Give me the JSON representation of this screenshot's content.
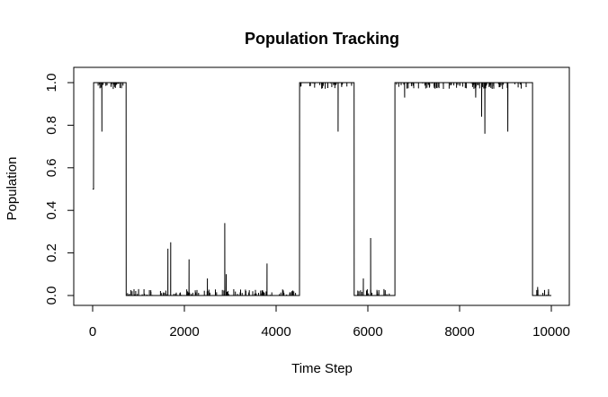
{
  "chart_data": {
    "type": "line",
    "title": "Population Tracking",
    "xlabel": "Time Step",
    "ylabel": "Population",
    "xlim": [
      0,
      10000
    ],
    "ylim": [
      0,
      1
    ],
    "x_ticks": [
      0,
      2000,
      4000,
      6000,
      8000,
      10000
    ],
    "x_tick_labels": [
      "0",
      "2000",
      "4000",
      "6000",
      "8000",
      "10000"
    ],
    "y_ticks": [
      0.0,
      0.2,
      0.4,
      0.6,
      0.8,
      1.0
    ],
    "y_tick_labels": [
      "0.0",
      "0.2",
      "0.4",
      "0.6",
      "0.8",
      "1.0"
    ],
    "grid": false,
    "legend": "none",
    "line_color": "#000000",
    "series": [
      {
        "x": [
          0,
          20,
          21,
          200,
          201,
          202,
          400,
          401,
          402,
          700,
          720,
          730,
          731,
          1000,
          1001,
          1002,
          1640,
          1641,
          1642,
          1700,
          1701,
          1702,
          2100,
          2101,
          2102,
          2500,
          2501,
          2502,
          2880,
          2881,
          2882,
          2910,
          2911,
          2912,
          3800,
          3801,
          3802,
          4480,
          4500,
          4510,
          4511,
          5350,
          5351,
          5352,
          5670,
          5690,
          5700,
          5701,
          5900,
          5901,
          5902,
          6060,
          6061,
          6062,
          6200,
          6201,
          6202,
          6350,
          6351,
          6352,
          6560,
          6580,
          6590,
          6591,
          6800,
          6801,
          6802,
          8350,
          8351,
          8352,
          8480,
          8481,
          8482,
          8550,
          8551,
          8552,
          9050,
          9051,
          9052,
          9560,
          9580,
          9590,
          9591,
          9700,
          9701,
          9702,
          10000
        ],
        "y": [
          0.5,
          0.5,
          1.0,
          1.0,
          0.77,
          1.0,
          1.0,
          0.98,
          1.0,
          1.0,
          1.0,
          1.0,
          0.0,
          0.0,
          0.03,
          0.0,
          0.0,
          0.22,
          0.0,
          0.0,
          0.25,
          0.0,
          0.0,
          0.17,
          0.0,
          0.0,
          0.08,
          0.0,
          0.0,
          0.34,
          0.0,
          0.0,
          0.1,
          0.0,
          0.0,
          0.15,
          0.0,
          0.0,
          0.0,
          0.0,
          1.0,
          1.0,
          0.77,
          1.0,
          1.0,
          1.0,
          1.0,
          0.0,
          0.0,
          0.08,
          0.0,
          0.0,
          0.27,
          0.0,
          0.0,
          0.02,
          0.0,
          0.0,
          0.03,
          0.0,
          0.0,
          0.0,
          0.0,
          1.0,
          1.0,
          0.93,
          1.0,
          1.0,
          0.93,
          1.0,
          1.0,
          0.84,
          1.0,
          1.0,
          0.76,
          1.0,
          1.0,
          0.77,
          1.0,
          1.0,
          1.0,
          1.0,
          0.0,
          0.0,
          0.04,
          0.0,
          0.0
        ]
      }
    ]
  }
}
